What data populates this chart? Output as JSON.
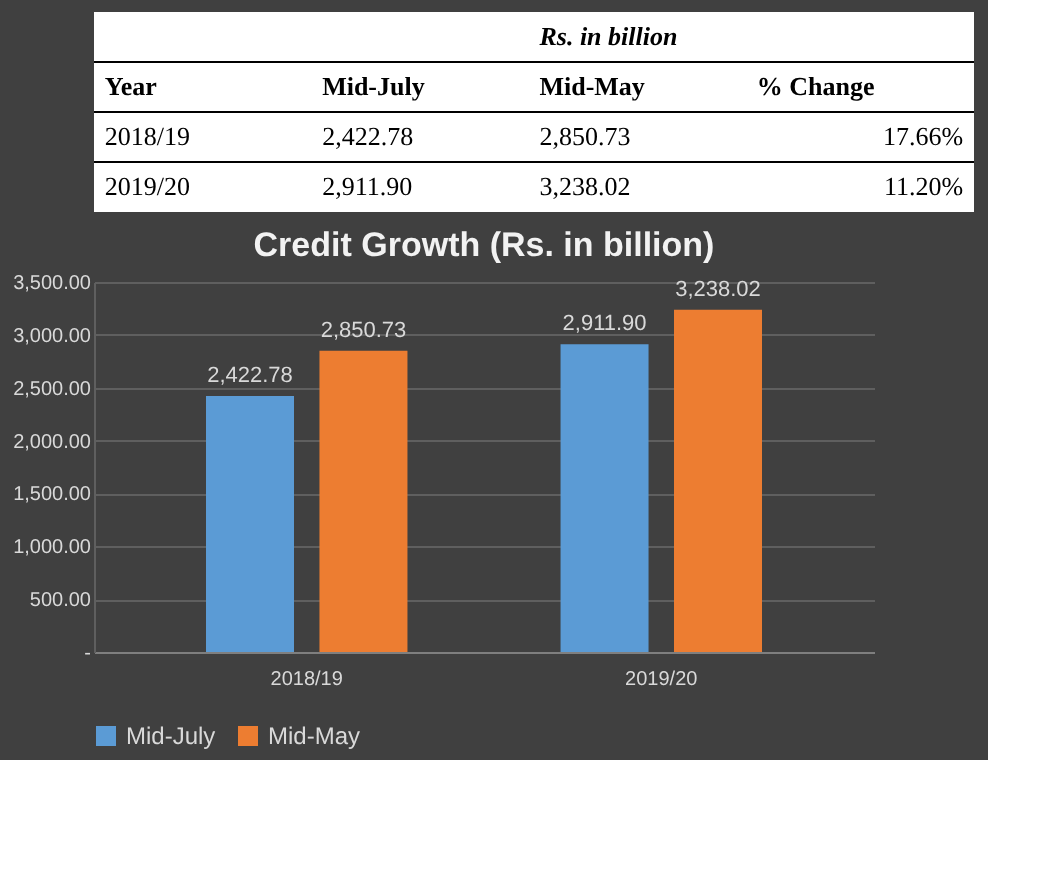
{
  "chart_data": {
    "type": "bar",
    "title": "Credit Growth (Rs. in billion)",
    "categories": [
      "2018/19",
      "2019/20"
    ],
    "series": [
      {
        "name": "Mid-July",
        "color": "#5b9bd5",
        "values": [
          2422.78,
          2911.9
        ],
        "value_labels": [
          "2,422.78",
          "2,911.90"
        ]
      },
      {
        "name": "Mid-May",
        "color": "#ed7d31",
        "values": [
          2850.73,
          3238.02
        ],
        "value_labels": [
          "2,850.73",
          "3,238.02"
        ]
      }
    ],
    "ylim": [
      0,
      3500
    ],
    "yticks": [
      {
        "value": 0,
        "label": "-"
      },
      {
        "value": 500,
        "label": "500.00"
      },
      {
        "value": 1000,
        "label": "1,000.00"
      },
      {
        "value": 1500,
        "label": "1,500.00"
      },
      {
        "value": 2000,
        "label": "2,000.00"
      },
      {
        "value": 2500,
        "label": "2,500.00"
      },
      {
        "value": 3000,
        "label": "3,000.00"
      },
      {
        "value": 3500,
        "label": "3,500.00"
      }
    ],
    "grid": "y",
    "legend": "bottom",
    "annotations": [
      "Rs. in billion",
      "Year",
      "% Change",
      "17.66%",
      "11.20%"
    ]
  }
}
